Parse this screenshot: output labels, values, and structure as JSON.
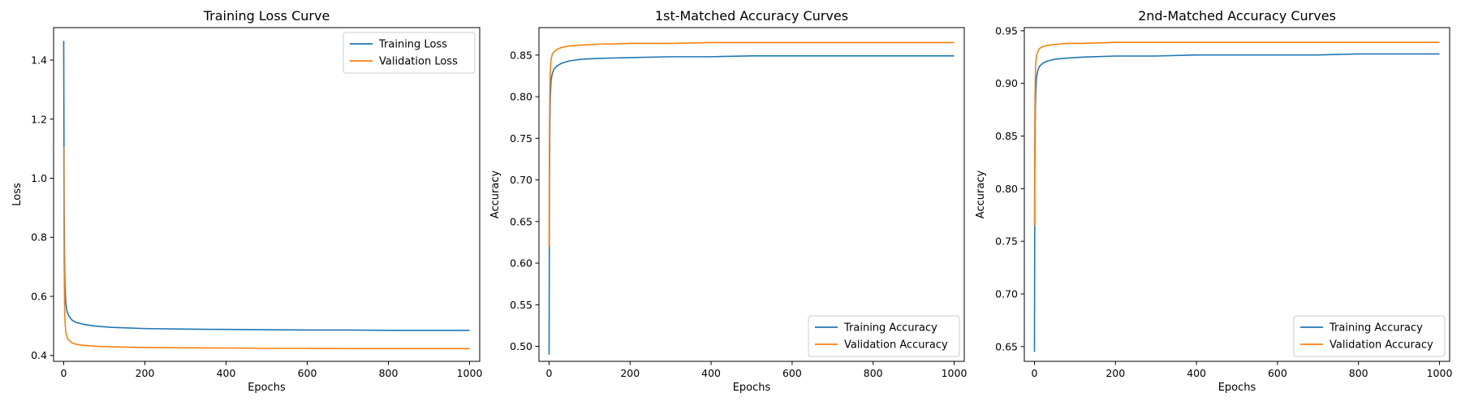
{
  "colors": {
    "training": "#1f77b4",
    "validation": "#ff7f0e",
    "axes": "#000000",
    "legend_border": "#cccccc"
  },
  "chart_data": [
    {
      "type": "line",
      "title": "Training Loss Curve",
      "xlabel": "Epochs",
      "ylabel": "Loss",
      "xlim": [
        -25,
        1025
      ],
      "ylim": [
        0.38,
        1.51
      ],
      "xticks": [
        0,
        200,
        400,
        600,
        800,
        1000
      ],
      "yticks": [
        0.4,
        0.6,
        0.8,
        1.0,
        1.2,
        1.4
      ],
      "ytick_labels": [
        "0.4",
        "0.6",
        "0.8",
        "1.0",
        "1.2",
        "1.4"
      ],
      "grid": false,
      "legend_position": "top-right",
      "series": [
        {
          "name": "Training Loss",
          "color_key": "training",
          "x": [
            0,
            1,
            2,
            3,
            5,
            8,
            12,
            20,
            30,
            50,
            80,
            120,
            200,
            300,
            400,
            500,
            600,
            700,
            800,
            900,
            1000
          ],
          "y": [
            1.465,
            0.9,
            0.72,
            0.64,
            0.58,
            0.55,
            0.535,
            0.52,
            0.512,
            0.505,
            0.499,
            0.495,
            0.491,
            0.489,
            0.488,
            0.487,
            0.486,
            0.486,
            0.485,
            0.485,
            0.485
          ]
        },
        {
          "name": "Validation Loss",
          "color_key": "validation",
          "x": [
            0,
            1,
            2,
            3,
            5,
            8,
            12,
            20,
            30,
            50,
            80,
            120,
            200,
            300,
            400,
            500,
            600,
            700,
            800,
            900,
            1000
          ],
          "y": [
            1.108,
            0.72,
            0.58,
            0.52,
            0.48,
            0.462,
            0.452,
            0.443,
            0.438,
            0.434,
            0.431,
            0.429,
            0.427,
            0.426,
            0.425,
            0.424,
            0.424,
            0.423,
            0.423,
            0.423,
            0.423
          ]
        }
      ]
    },
    {
      "type": "line",
      "title": "1st-Matched Accuracy Curves",
      "xlabel": "Epochs",
      "ylabel": "Accuracy",
      "xlim": [
        -25,
        1025
      ],
      "ylim": [
        0.482,
        0.883
      ],
      "xticks": [
        0,
        200,
        400,
        600,
        800,
        1000
      ],
      "yticks": [
        0.5,
        0.55,
        0.6,
        0.65,
        0.7,
        0.75,
        0.8,
        0.85
      ],
      "ytick_labels": [
        "0.50",
        "0.55",
        "0.60",
        "0.65",
        "0.70",
        "0.75",
        "0.80",
        "0.85"
      ],
      "grid": false,
      "legend_position": "bottom-right",
      "series": [
        {
          "name": "Training Accuracy",
          "color_key": "training",
          "x": [
            0,
            1,
            2,
            3,
            5,
            8,
            12,
            20,
            30,
            50,
            80,
            120,
            200,
            300,
            400,
            500,
            600,
            700,
            800,
            900,
            1000
          ],
          "y": [
            0.49,
            0.7,
            0.77,
            0.8,
            0.82,
            0.828,
            0.833,
            0.837,
            0.84,
            0.843,
            0.845,
            0.846,
            0.847,
            0.848,
            0.848,
            0.849,
            0.849,
            0.849,
            0.849,
            0.849,
            0.849
          ]
        },
        {
          "name": "Validation Accuracy",
          "color_key": "validation",
          "x": [
            0,
            1,
            2,
            3,
            5,
            8,
            12,
            20,
            30,
            50,
            80,
            120,
            200,
            300,
            400,
            500,
            600,
            700,
            800,
            900,
            1000
          ],
          "y": [
            0.62,
            0.76,
            0.81,
            0.83,
            0.845,
            0.851,
            0.854,
            0.857,
            0.859,
            0.861,
            0.862,
            0.863,
            0.864,
            0.864,
            0.865,
            0.865,
            0.865,
            0.865,
            0.865,
            0.865,
            0.865
          ]
        }
      ]
    },
    {
      "type": "line",
      "title": "2nd-Matched Accuracy Curves",
      "xlabel": "Epochs",
      "ylabel": "Accuracy",
      "xlim": [
        -25,
        1025
      ],
      "ylim": [
        0.636,
        0.953
      ],
      "xticks": [
        0,
        200,
        400,
        600,
        800,
        1000
      ],
      "yticks": [
        0.65,
        0.7,
        0.75,
        0.8,
        0.85,
        0.9,
        0.95
      ],
      "ytick_labels": [
        "0.65",
        "0.70",
        "0.75",
        "0.80",
        "0.85",
        "0.90",
        "0.95"
      ],
      "grid": false,
      "legend_position": "bottom-right",
      "series": [
        {
          "name": "Training Accuracy",
          "color_key": "training",
          "x": [
            0,
            1,
            2,
            3,
            5,
            8,
            12,
            20,
            30,
            50,
            80,
            120,
            200,
            300,
            400,
            500,
            600,
            700,
            800,
            900,
            1000
          ],
          "y": [
            0.645,
            0.82,
            0.87,
            0.89,
            0.905,
            0.912,
            0.916,
            0.919,
            0.921,
            0.923,
            0.924,
            0.925,
            0.926,
            0.926,
            0.927,
            0.927,
            0.927,
            0.927,
            0.928,
            0.928,
            0.928
          ]
        },
        {
          "name": "Validation Accuracy",
          "color_key": "validation",
          "x": [
            0,
            1,
            2,
            3,
            5,
            8,
            12,
            20,
            30,
            50,
            80,
            120,
            200,
            300,
            400,
            500,
            600,
            700,
            800,
            900,
            1000
          ],
          "y": [
            0.765,
            0.87,
            0.905,
            0.918,
            0.926,
            0.93,
            0.933,
            0.935,
            0.936,
            0.937,
            0.938,
            0.938,
            0.939,
            0.939,
            0.939,
            0.939,
            0.939,
            0.939,
            0.939,
            0.939,
            0.939
          ]
        }
      ]
    }
  ]
}
